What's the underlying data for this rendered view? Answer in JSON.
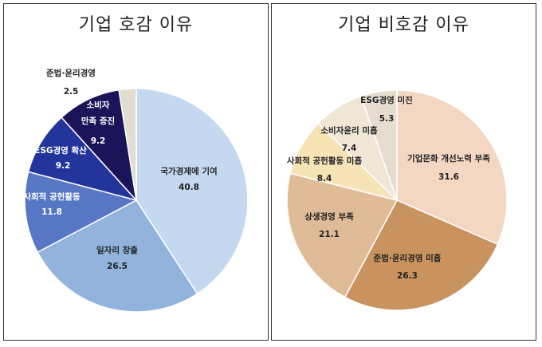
{
  "chart_data": [
    {
      "type": "pie",
      "title": "기업 호감 이유",
      "slices": [
        {
          "label": "국가경제에 기여",
          "value": 40.8,
          "value_text": "40.8",
          "color": "#c4d8ef",
          "text_color": "#222222"
        },
        {
          "label": "일자리 창출",
          "value": 26.5,
          "value_text": "26.5",
          "color": "#91b3dc",
          "text_color": "#222222"
        },
        {
          "label": "사회적 공헌활동",
          "value": 11.8,
          "value_text": "11.8",
          "color": "#5777c4",
          "text_color": "#ffffff"
        },
        {
          "label": "ESG경영 확산",
          "value": 9.2,
          "value_text": "9.2",
          "color": "#23349c",
          "text_color": "#ffffff"
        },
        {
          "label": "소비자 만족 증진",
          "value": 9.2,
          "value_text": "9.2",
          "color": "#1c1458",
          "text_color": "#ffffff"
        },
        {
          "label": "준법·윤리경영",
          "value": 2.5,
          "value_text": "2.5",
          "color": "#e2ddd3",
          "text_color": "#222222"
        }
      ]
    },
    {
      "type": "pie",
      "title": "기업 비호감 이유",
      "slices": [
        {
          "label": "기업문화 개선노력 부족",
          "value": 31.6,
          "value_text": "31.6",
          "color": "#f3d7c3",
          "text_color": "#222222"
        },
        {
          "label": "준법·윤리경영 미흡",
          "value": 26.3,
          "value_text": "26.3",
          "color": "#c8935e",
          "text_color": "#222222"
        },
        {
          "label": "상생경영 부족",
          "value": 21.1,
          "value_text": "21.1",
          "color": "#dfbb98",
          "text_color": "#222222"
        },
        {
          "label": "사회적 공헌활동 미흡",
          "value": 8.4,
          "value_text": "8.4",
          "color": "#f6e3b6",
          "text_color": "#222222"
        },
        {
          "label": "소비자윤리 미흡",
          "value": 7.4,
          "value_text": "7.4",
          "color": "#f0e6d6",
          "text_color": "#222222"
        },
        {
          "label": "ESG경영 미진",
          "value": 5.3,
          "value_text": "5.3",
          "color": "#e6ddd0",
          "text_color": "#222222"
        }
      ]
    }
  ]
}
